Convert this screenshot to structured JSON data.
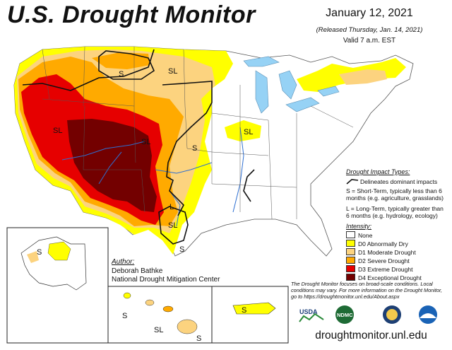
{
  "header": {
    "title": "U.S. Drought Monitor",
    "date": "January 12, 2021",
    "released": "(Released Thursday, Jan. 14, 2021)",
    "valid": "Valid 7 a.m. EST"
  },
  "impact_types": {
    "title": "Drought Impact Types:",
    "line_text": "Delineates dominant impacts",
    "short_term": "S = Short-Term, typically less than 6 months (e.g. agriculture, grasslands)",
    "long_term": "L = Long-Term, typically greater than 6 months (e.g. hydrology, ecology)"
  },
  "intensity": {
    "title": "Intensity:",
    "categories": [
      {
        "label": "None",
        "color": "#ffffff"
      },
      {
        "label": "D0 Abnormally Dry",
        "color": "#ffff00"
      },
      {
        "label": "D1 Moderate Drought",
        "color": "#fcd37f"
      },
      {
        "label": "D2 Severe Drought",
        "color": "#ffaa00"
      },
      {
        "label": "D3 Extreme Drought",
        "color": "#e60000"
      },
      {
        "label": "D4 Exceptional Drought",
        "color": "#730000"
      }
    ]
  },
  "author": {
    "label": "Author:",
    "name": "Deborah Bathke",
    "org": "National Drought Mitigation Center"
  },
  "note": "The Drought Monitor focuses on broad-scale conditions. Local conditions may vary. For more information on the Drought Monitor, go to https://droughtmonitor.unl.edu/About.aspx",
  "map_labels": {
    "montana_north": "S",
    "north_dakota": "SL",
    "california": "SL",
    "colorado": "SL",
    "kansas": "S",
    "illinois": "SL",
    "texas_west": "SL",
    "texas_south": "S",
    "texas_central": "L",
    "alaska_inset": "S",
    "hawaii_s": "S",
    "hawaii_sl": "SL",
    "hawaii_s2": "S",
    "puerto_rico": "S"
  },
  "logos": {
    "usda": "USDA",
    "ndmc": "NDMC"
  },
  "url": "droughtmonitor.unl.edu"
}
